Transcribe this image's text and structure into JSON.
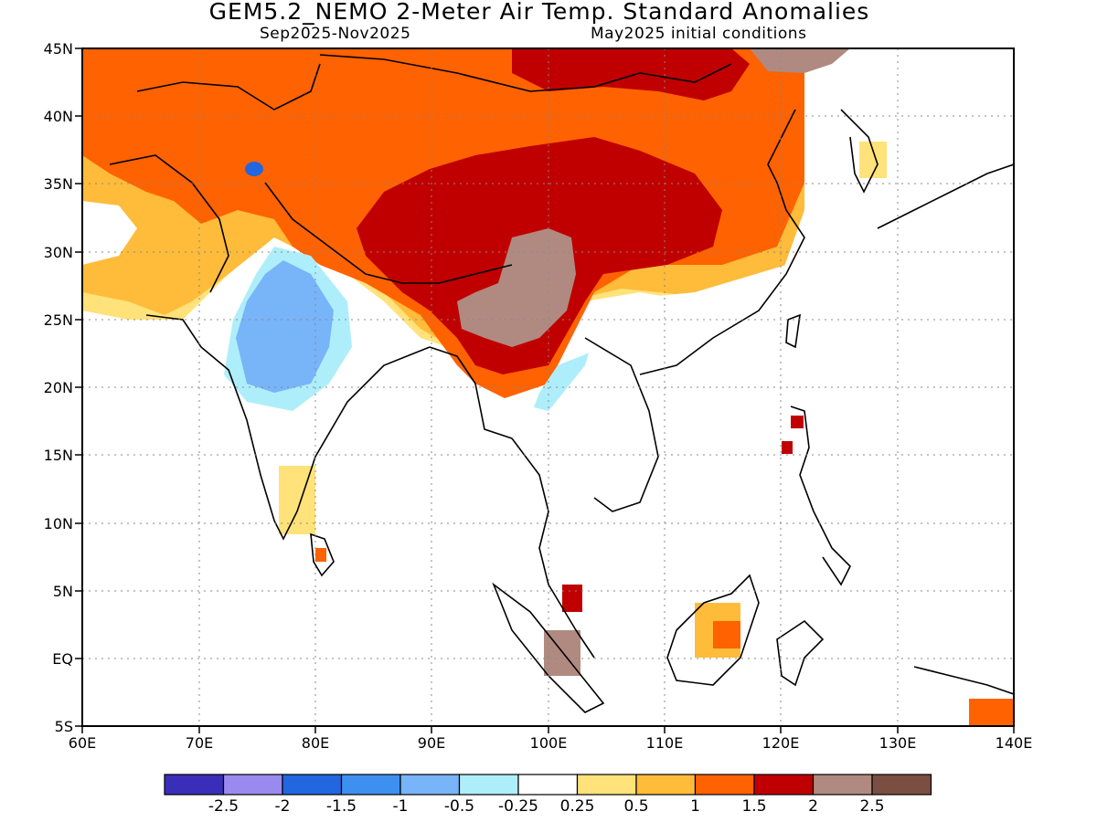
{
  "header": {
    "title": "GEM5.2_NEMO 2-Meter Air Temp. Standard Anomalies",
    "period": "Sep2025-Nov2025",
    "init": "May2025 initial conditions"
  },
  "axes": {
    "lat_labels": [
      "45N",
      "40N",
      "35N",
      "30N",
      "25N",
      "20N",
      "15N",
      "10N",
      "5N",
      "EQ",
      "5S"
    ],
    "lon_labels": [
      "60E",
      "70E",
      "80E",
      "90E",
      "100E",
      "110E",
      "120E",
      "130E",
      "140E"
    ],
    "lon_range": [
      60,
      140
    ],
    "lat_range": [
      -5,
      45
    ]
  },
  "colorbar": {
    "colors": [
      "#3a2eb8",
      "#9a8af0",
      "#2266e0",
      "#3d8ff0",
      "#78b4f8",
      "#aeeefa",
      "#ffffff",
      "#ffe27a",
      "#ffbb3a",
      "#ff6200",
      "#c00000",
      "#b08a80",
      "#7a4e40"
    ],
    "labels": [
      "-2.5",
      "-2",
      "-1.5",
      "-1",
      "-0.5",
      "-0.25",
      "0.25",
      "0.5",
      "1",
      "1.5",
      "2",
      "2.5"
    ]
  }
}
